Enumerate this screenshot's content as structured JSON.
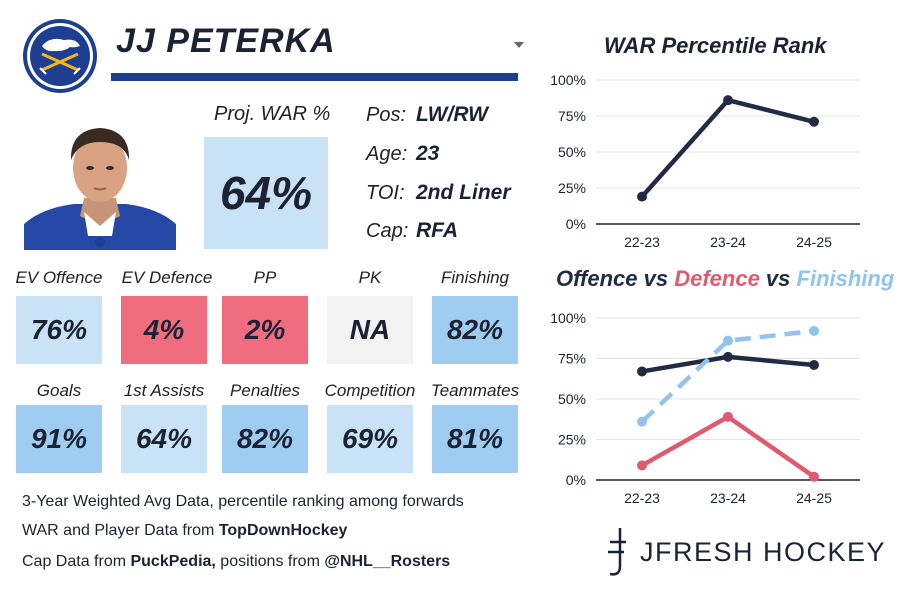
{
  "player": {
    "name": "JJ PETERKA",
    "proj_war_label": "Proj. WAR %",
    "proj_war_value": "64%",
    "info": [
      {
        "label": "Pos:",
        "value": "LW/RW"
      },
      {
        "label": "Age:",
        "value": "23"
      },
      {
        "label": "TOI:",
        "value": "2nd Liner"
      },
      {
        "label": "Cap:",
        "value": "RFA"
      }
    ]
  },
  "colors": {
    "navy": "#1e3f91",
    "dark_line": "#222b44",
    "red": "#e05a6f",
    "light_blue": "#92c3ee",
    "box_dark_blue": "#9fcdf1",
    "box_light_blue": "#c9e2f6",
    "box_red": "#ef6d7f",
    "box_gray": "#f3f3f3"
  },
  "stats": [
    {
      "label": "EV Offence",
      "value": "76%",
      "color": "#c9e2f6"
    },
    {
      "label": "EV Defence",
      "value": "4%",
      "color": "#ef6d7f"
    },
    {
      "label": "PP",
      "value": "2%",
      "color": "#ef6d7f"
    },
    {
      "label": "PK",
      "value": "NA",
      "color": "#f3f3f3"
    },
    {
      "label": "Finishing",
      "value": "82%",
      "color": "#9fcdf1"
    },
    {
      "label": "Goals",
      "value": "91%",
      "color": "#9fcdf1"
    },
    {
      "label": "1st Assists",
      "value": "64%",
      "color": "#c9e2f6"
    },
    {
      "label": "Penalties",
      "value": "82%",
      "color": "#9fcdf1"
    },
    {
      "label": "Competition",
      "value": "69%",
      "color": "#c9e2f6"
    },
    {
      "label": "Teammates",
      "value": "81%",
      "color": "#9fcdf1"
    }
  ],
  "footer": {
    "line1": "3-Year Weighted Avg Data, percentile ranking among forwards",
    "line2_prefix": "WAR and Player Data from ",
    "line2_bold": "TopDownHockey",
    "line3_prefix": "Cap Data from ",
    "line3_bold1": "PuckPedia,",
    "line3_mid": " positions from ",
    "line3_bold2": "@NHL__Rosters"
  },
  "brand": {
    "text": "JFRESH HOCKEY",
    "icon": "jfresh-logo-icon"
  },
  "icons": {
    "team_logo": "buffalo-sabres-logo-icon",
    "headshot": "player-headshot",
    "dropdown": "chevron-down-icon"
  },
  "chart_data": [
    {
      "type": "line",
      "title": "WAR Percentile Rank",
      "categories": [
        "22-23",
        "23-24",
        "24-25"
      ],
      "ylim": [
        0,
        100
      ],
      "yticks": [
        "0%",
        "25%",
        "50%",
        "75%",
        "100%"
      ],
      "grid": true,
      "series": [
        {
          "values": [
            19,
            86,
            71
          ],
          "color": "#222b44",
          "dashed": false
        }
      ]
    },
    {
      "type": "line",
      "title_parts": [
        {
          "text": "Offence",
          "color": "#222b44"
        },
        {
          "text": " vs ",
          "color": "#222b44"
        },
        {
          "text": "Defence",
          "color": "#e05a6f"
        },
        {
          "text": " vs ",
          "color": "#222b44"
        },
        {
          "text": "Finishing",
          "color": "#92c3ee"
        }
      ],
      "categories": [
        "22-23",
        "23-24",
        "24-25"
      ],
      "ylim": [
        0,
        100
      ],
      "yticks": [
        "0%",
        "25%",
        "50%",
        "75%",
        "100%"
      ],
      "grid": true,
      "series": [
        {
          "name": "Offence",
          "values": [
            67,
            76,
            71
          ],
          "color": "#222b44",
          "dashed": false
        },
        {
          "name": "Defence",
          "values": [
            9,
            39,
            2
          ],
          "color": "#e05a6f",
          "dashed": false
        },
        {
          "name": "Finishing",
          "values": [
            36,
            86,
            92
          ],
          "color": "#92c3ee",
          "dashed": true
        }
      ]
    }
  ]
}
